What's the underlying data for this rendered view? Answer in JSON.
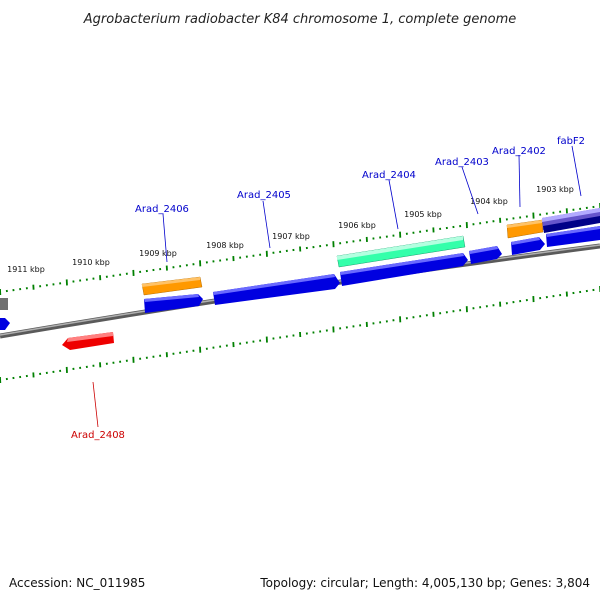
{
  "title": "Agrobacterium radiobacter K84 chromosome 1, complete genome",
  "footer": {
    "accession": "Accession: NC_011985",
    "topology": "Topology: circular; Length: 4,005,130 bp; Genes: 3,804"
  },
  "colors": {
    "backbone": "#808080",
    "tick": "#008000",
    "gene_blue": "#0000e0",
    "gene_orange": "#ff9900",
    "gene_teal": "#33ffaa",
    "gene_purple": "#6655cc",
    "gene_navy": "#000088",
    "gene_red": "#ee0000",
    "label_blue": "#0000cc",
    "label_red": "#cc0000"
  },
  "tick_labels": [
    "1911 kbp",
    "1910 kbp",
    "1909 kbp",
    "1908 kbp",
    "1907 kbp",
    "1906 kbp",
    "1905 kbp",
    "1904 kbp",
    "1903 kbp"
  ],
  "gene_labels": [
    "Arad_2406",
    "Arad_2405",
    "Arad_2404",
    "Arad_2403",
    "Arad_2402",
    "fabF2",
    "Arad_2408"
  ]
}
